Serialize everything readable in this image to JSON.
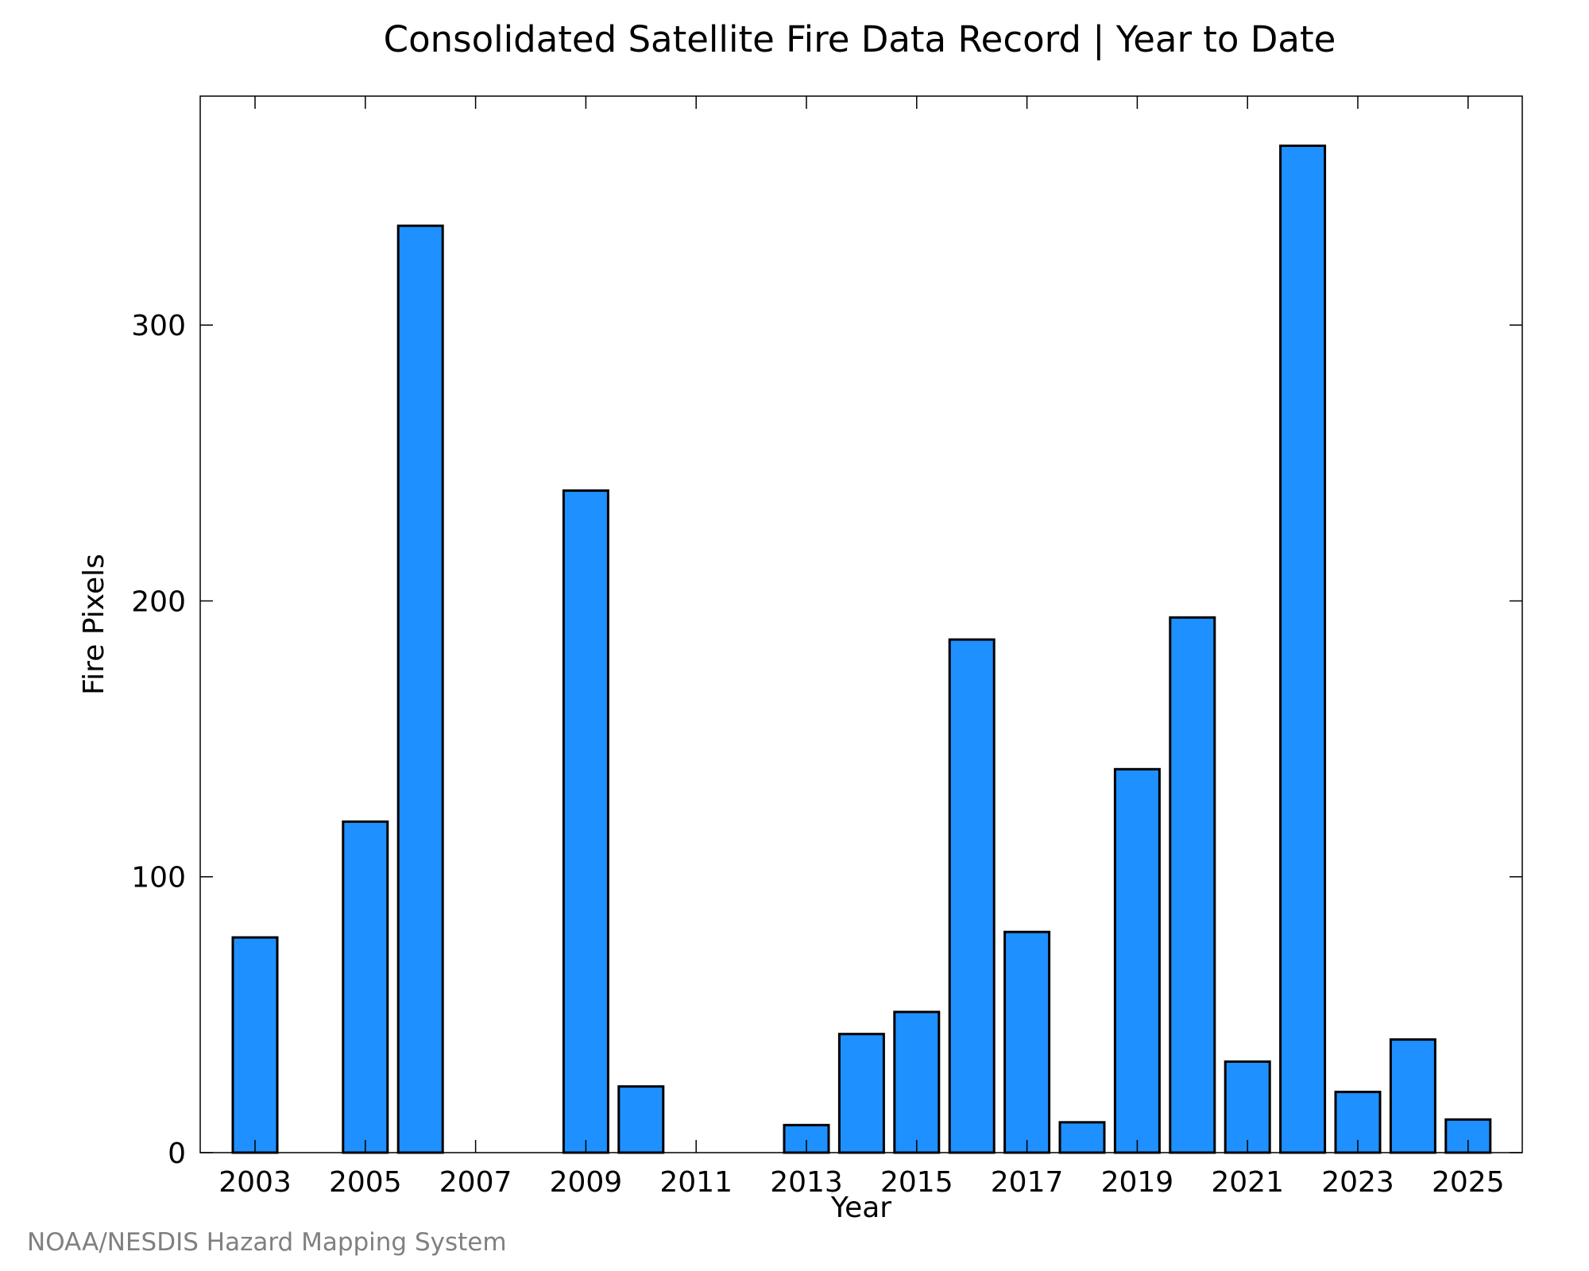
{
  "chart_data": {
    "type": "bar",
    "title": "Consolidated Satellite Fire Data Record | Year to Date",
    "xlabel": "Year",
    "ylabel": "Fire Pixels",
    "categories": [
      "2003",
      "2004",
      "2005",
      "2006",
      "2007",
      "2008",
      "2009",
      "2010",
      "2011",
      "2012",
      "2013",
      "2014",
      "2015",
      "2016",
      "2017",
      "2018",
      "2019",
      "2020",
      "2021",
      "2022",
      "2023",
      "2024",
      "2025"
    ],
    "values": [
      78,
      0,
      120,
      336,
      0,
      0,
      240,
      24,
      0,
      0,
      10,
      43,
      51,
      186,
      80,
      11,
      139,
      194,
      33,
      365,
      22,
      41,
      12
    ],
    "x_tick_labels": [
      "2003",
      "2005",
      "2007",
      "2009",
      "2011",
      "2013",
      "2015",
      "2017",
      "2019",
      "2021",
      "2023",
      "2025"
    ],
    "y_ticks": [
      0,
      100,
      200,
      300
    ],
    "ylim": [
      0,
      383
    ],
    "bar_color": "#1e90ff",
    "grid": false,
    "legend": "none"
  },
  "credit": "NOAA/NESDIS Hazard Mapping System"
}
